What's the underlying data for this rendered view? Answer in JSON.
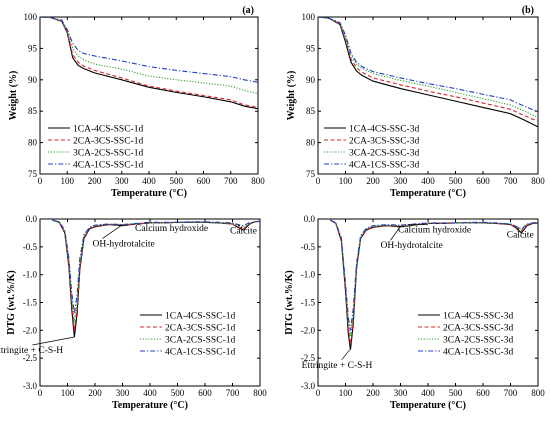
{
  "chart_data": [
    {
      "id": "a",
      "type": "line",
      "panel_label": "(a)",
      "xlabel": "Temperature (°C)",
      "ylabel": "Weight (%)",
      "xlim": [
        0,
        800
      ],
      "ylim": [
        75,
        100
      ],
      "xticks": [
        0,
        100,
        200,
        300,
        400,
        500,
        600,
        700,
        800
      ],
      "yticks": [
        75,
        80,
        85,
        90,
        95,
        100
      ],
      "legend_position": "bottom-left",
      "annotations": [],
      "series": [
        {
          "name": "1CA-4CS-SSC-1d",
          "color": "#000000",
          "dash": "solid",
          "x": [
            0,
            40,
            80,
            100,
            120,
            140,
            160,
            200,
            300,
            400,
            500,
            600,
            700,
            750,
            800
          ],
          "y": [
            100,
            99.9,
            99.3,
            97.5,
            93.5,
            92.3,
            91.8,
            91.1,
            90.0,
            88.8,
            88.0,
            87.3,
            86.5,
            85.8,
            85.4
          ]
        },
        {
          "name": "2CA-3CS-SSC-1d",
          "color": "#d62728",
          "dash": "dashed",
          "x": [
            0,
            40,
            80,
            100,
            120,
            140,
            160,
            200,
            300,
            400,
            500,
            600,
            700,
            750,
            800
          ],
          "y": [
            100,
            99.9,
            99.3,
            97.6,
            94.0,
            92.8,
            92.2,
            91.5,
            90.3,
            89.0,
            88.2,
            87.5,
            86.8,
            86.0,
            85.6
          ]
        },
        {
          "name": "3CA-2CS-SSC-1d",
          "color": "#2ca02c",
          "dash": "dotted",
          "x": [
            0,
            40,
            80,
            100,
            120,
            140,
            160,
            200,
            300,
            400,
            500,
            600,
            700,
            750,
            800
          ],
          "y": [
            100,
            99.9,
            99.4,
            97.8,
            95.0,
            93.8,
            93.2,
            92.5,
            91.7,
            90.6,
            90.0,
            89.5,
            89.0,
            88.3,
            87.8
          ]
        },
        {
          "name": "4CA-1CS-SSC-1d",
          "color": "#1f3fbf",
          "dash": "dashdot",
          "x": [
            0,
            40,
            80,
            100,
            120,
            140,
            160,
            200,
            300,
            400,
            500,
            600,
            700,
            750,
            800
          ],
          "y": [
            100,
            99.9,
            99.5,
            98.0,
            95.8,
            94.7,
            94.2,
            93.8,
            93.0,
            92.1,
            91.5,
            91.0,
            90.5,
            90.0,
            89.6
          ]
        }
      ]
    },
    {
      "id": "b",
      "type": "line",
      "panel_label": "(b)",
      "xlabel": "Temperature (°C)",
      "ylabel": "Weight (%)",
      "xlim": [
        0,
        800
      ],
      "ylim": [
        75,
        100
      ],
      "xticks": [
        0,
        100,
        200,
        300,
        400,
        500,
        600,
        700,
        800
      ],
      "yticks": [
        75,
        80,
        85,
        90,
        95,
        100
      ],
      "legend_position": "bottom-left",
      "annotations": [],
      "series": [
        {
          "name": "1CA-4CS-SSC-3d",
          "color": "#000000",
          "dash": "solid",
          "x": [
            0,
            40,
            80,
            100,
            120,
            140,
            160,
            200,
            300,
            400,
            500,
            600,
            700,
            750,
            800
          ],
          "y": [
            100,
            99.8,
            98.8,
            96.0,
            92.8,
            91.4,
            90.7,
            89.8,
            88.6,
            87.6,
            86.6,
            85.6,
            84.6,
            83.6,
            82.5
          ]
        },
        {
          "name": "2CA-3CS-SSC-3d",
          "color": "#d62728",
          "dash": "dashed",
          "x": [
            0,
            40,
            80,
            100,
            120,
            140,
            160,
            200,
            300,
            400,
            500,
            600,
            700,
            750,
            800
          ],
          "y": [
            100,
            99.8,
            98.9,
            96.4,
            93.3,
            91.9,
            91.2,
            90.3,
            89.2,
            88.2,
            87.3,
            86.3,
            85.3,
            84.3,
            83.4
          ]
        },
        {
          "name": "3CA-2CS-SSC-3d",
          "color": "#2ca02c",
          "dash": "dotted",
          "x": [
            0,
            40,
            80,
            100,
            120,
            140,
            160,
            200,
            300,
            400,
            500,
            600,
            700,
            750,
            800
          ],
          "y": [
            100,
            99.8,
            99.0,
            96.8,
            93.8,
            92.5,
            91.8,
            91.0,
            89.9,
            89.0,
            88.0,
            87.0,
            86.0,
            85.0,
            84.0
          ]
        },
        {
          "name": "4CA-1CS-SSC-3d",
          "color": "#1f3fbf",
          "dash": "dashdot",
          "x": [
            0,
            40,
            80,
            100,
            120,
            140,
            160,
            200,
            300,
            400,
            500,
            600,
            700,
            750,
            800
          ],
          "y": [
            100,
            99.8,
            99.1,
            97.1,
            94.2,
            92.8,
            92.1,
            91.3,
            90.3,
            89.4,
            88.6,
            87.7,
            86.8,
            85.8,
            84.9
          ]
        }
      ]
    },
    {
      "id": "c",
      "type": "line",
      "panel_label": "",
      "xlabel": "Temperature (°C)",
      "ylabel": "DTG (wt.%/K)",
      "xlim": [
        0,
        800
      ],
      "ylim": [
        -3.0,
        0.0
      ],
      "xticks": [
        0,
        100,
        200,
        300,
        400,
        500,
        600,
        700,
        800
      ],
      "yticks": [
        0.0,
        -0.5,
        -1.0,
        -1.5,
        -2.0,
        -2.5,
        -3.0
      ],
      "legend_position": "bottom-right",
      "annotations": [
        {
          "text": "OH-hydrotalcite",
          "x": 300,
          "y": -0.1
        },
        {
          "text": "Calcium hydroxide",
          "x": 400,
          "y": -0.07
        },
        {
          "text": "Calcite",
          "x": 720,
          "y": -0.12
        },
        {
          "text": "Ettringite + C-S-H",
          "x": 125,
          "y": -2.12
        }
      ],
      "series": [
        {
          "name": "1CA-4CS-SSC-1d",
          "color": "#000000",
          "dash": "solid",
          "x": [
            45,
            70,
            90,
            105,
            115,
            125,
            135,
            145,
            160,
            180,
            200,
            250,
            300,
            350,
            400,
            450,
            500,
            550,
            600,
            650,
            700,
            720,
            740,
            760,
            780,
            800
          ],
          "y": [
            -0.02,
            -0.06,
            -0.25,
            -0.85,
            -1.6,
            -2.12,
            -1.7,
            -0.9,
            -0.35,
            -0.18,
            -0.14,
            -0.1,
            -0.12,
            -0.09,
            -0.07,
            -0.07,
            -0.06,
            -0.06,
            -0.06,
            -0.07,
            -0.09,
            -0.15,
            -0.2,
            -0.1,
            -0.05,
            -0.04
          ]
        },
        {
          "name": "2CA-3CS-SSC-1d",
          "color": "#d62728",
          "dash": "dashed",
          "x": [
            45,
            70,
            90,
            105,
            115,
            125,
            135,
            145,
            160,
            180,
            200,
            250,
            300,
            350,
            400,
            450,
            500,
            550,
            600,
            650,
            700,
            720,
            740,
            760,
            780,
            800
          ],
          "y": [
            -0.02,
            -0.06,
            -0.24,
            -0.8,
            -1.5,
            -2.0,
            -1.6,
            -0.85,
            -0.33,
            -0.17,
            -0.13,
            -0.1,
            -0.11,
            -0.09,
            -0.07,
            -0.07,
            -0.06,
            -0.06,
            -0.06,
            -0.07,
            -0.09,
            -0.14,
            -0.18,
            -0.09,
            -0.05,
            -0.04
          ]
        },
        {
          "name": "3CA-2CS-SSC-1d",
          "color": "#2ca02c",
          "dash": "dotted",
          "x": [
            45,
            70,
            90,
            105,
            115,
            125,
            135,
            145,
            160,
            180,
            200,
            250,
            300,
            350,
            400,
            450,
            500,
            550,
            600,
            650,
            700,
            720,
            740,
            760,
            780,
            800
          ],
          "y": [
            -0.02,
            -0.05,
            -0.22,
            -0.75,
            -1.4,
            -1.85,
            -1.5,
            -0.8,
            -0.3,
            -0.16,
            -0.12,
            -0.09,
            -0.1,
            -0.08,
            -0.07,
            -0.07,
            -0.06,
            -0.06,
            -0.06,
            -0.07,
            -0.08,
            -0.12,
            -0.15,
            -0.08,
            -0.05,
            -0.04
          ]
        },
        {
          "name": "4CA-1CS-SSC-1d",
          "color": "#1f3fbf",
          "dash": "dashdot",
          "x": [
            45,
            70,
            90,
            105,
            115,
            125,
            135,
            145,
            160,
            180,
            200,
            250,
            300,
            350,
            400,
            450,
            500,
            550,
            600,
            650,
            700,
            720,
            740,
            760,
            780,
            800
          ],
          "y": [
            -0.02,
            -0.05,
            -0.2,
            -0.7,
            -1.3,
            -1.7,
            -1.35,
            -0.7,
            -0.28,
            -0.15,
            -0.11,
            -0.09,
            -0.1,
            -0.08,
            -0.06,
            -0.06,
            -0.06,
            -0.05,
            -0.05,
            -0.06,
            -0.07,
            -0.1,
            -0.12,
            -0.07,
            -0.05,
            -0.04
          ]
        }
      ]
    },
    {
      "id": "d",
      "type": "line",
      "panel_label": "",
      "xlabel": "Temperature (°C)",
      "ylabel": "DTG (wt.%/K)",
      "xlim": [
        0,
        800
      ],
      "ylim": [
        -3.0,
        0.0
      ],
      "xticks": [
        0,
        100,
        200,
        300,
        400,
        500,
        600,
        700,
        800
      ],
      "yticks": [
        0.0,
        -0.5,
        -1.0,
        -1.5,
        -2.0,
        -2.5,
        -3.0
      ],
      "legend_position": "bottom-right",
      "annotations": [
        {
          "text": "OH-hydrotalcite",
          "x": 300,
          "y": -0.13
        },
        {
          "text": "Calcium hydroxide",
          "x": 400,
          "y": -0.1
        },
        {
          "text": "Calcite",
          "x": 730,
          "y": -0.15
        },
        {
          "text": "Ettringite + C-S-H",
          "x": 115,
          "y": -2.35
        }
      ],
      "series": [
        {
          "name": "1CA-4CS-SSC-3d",
          "color": "#000000",
          "dash": "solid",
          "x": [
            45,
            65,
            85,
            100,
            110,
            118,
            128,
            140,
            155,
            175,
            200,
            250,
            300,
            350,
            400,
            450,
            500,
            550,
            600,
            650,
            700,
            720,
            740,
            760,
            780,
            800
          ],
          "y": [
            -0.02,
            -0.08,
            -0.4,
            -1.3,
            -2.05,
            -2.35,
            -1.9,
            -0.9,
            -0.35,
            -0.2,
            -0.15,
            -0.12,
            -0.14,
            -0.11,
            -0.08,
            -0.08,
            -0.07,
            -0.07,
            -0.07,
            -0.08,
            -0.1,
            -0.16,
            -0.25,
            -0.12,
            -0.08,
            -0.07
          ]
        },
        {
          "name": "2CA-3CS-SSC-3d",
          "color": "#d62728",
          "dash": "dashed",
          "x": [
            45,
            65,
            85,
            100,
            110,
            118,
            128,
            140,
            155,
            175,
            200,
            250,
            300,
            350,
            400,
            450,
            500,
            550,
            600,
            650,
            700,
            720,
            740,
            760,
            780,
            800
          ],
          "y": [
            -0.02,
            -0.08,
            -0.38,
            -1.25,
            -1.95,
            -2.25,
            -1.82,
            -0.88,
            -0.34,
            -0.19,
            -0.14,
            -0.12,
            -0.13,
            -0.1,
            -0.08,
            -0.08,
            -0.07,
            -0.07,
            -0.07,
            -0.08,
            -0.1,
            -0.15,
            -0.22,
            -0.11,
            -0.08,
            -0.07
          ]
        },
        {
          "name": "3CA-2CS-SSC-3d",
          "color": "#2ca02c",
          "dash": "dotted",
          "x": [
            45,
            65,
            85,
            100,
            110,
            118,
            128,
            140,
            155,
            175,
            200,
            250,
            300,
            350,
            400,
            450,
            500,
            550,
            600,
            650,
            700,
            720,
            740,
            760,
            780,
            800
          ],
          "y": [
            -0.02,
            -0.07,
            -0.36,
            -1.2,
            -1.85,
            -2.1,
            -1.72,
            -0.84,
            -0.32,
            -0.18,
            -0.13,
            -0.11,
            -0.12,
            -0.1,
            -0.08,
            -0.07,
            -0.07,
            -0.07,
            -0.07,
            -0.08,
            -0.09,
            -0.14,
            -0.2,
            -0.1,
            -0.07,
            -0.06
          ]
        },
        {
          "name": "4CA-1CS-SSC-3d",
          "color": "#1f3fbf",
          "dash": "dashdot",
          "x": [
            45,
            65,
            85,
            100,
            110,
            118,
            128,
            140,
            155,
            175,
            200,
            250,
            300,
            350,
            400,
            450,
            500,
            550,
            600,
            650,
            700,
            720,
            740,
            760,
            780,
            800
          ],
          "y": [
            -0.02,
            -0.07,
            -0.34,
            -1.15,
            -1.75,
            -2.0,
            -1.62,
            -0.8,
            -0.3,
            -0.17,
            -0.12,
            -0.1,
            -0.11,
            -0.09,
            -0.07,
            -0.07,
            -0.07,
            -0.06,
            -0.06,
            -0.07,
            -0.09,
            -0.13,
            -0.18,
            -0.09,
            -0.07,
            -0.06
          ]
        }
      ]
    }
  ]
}
